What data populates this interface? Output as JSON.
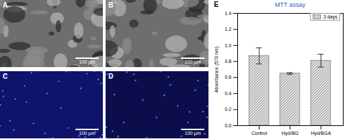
{
  "panels": [
    {
      "label": "A",
      "scale_bar": "100 µm"
    },
    {
      "label": "B",
      "scale_bar": "100 µm"
    },
    {
      "label": "C",
      "scale_bar": "100 µm"
    },
    {
      "label": "D",
      "scale_bar": "100 µm"
    }
  ],
  "chart_data": {
    "type": "bar",
    "panel_label": "E",
    "title": "MTT assay",
    "y_label": "Absorbance (570 nm)",
    "categories": [
      "Control",
      "Hyd/BG",
      "Hyd/BGA"
    ],
    "series": [
      {
        "name": "3 days",
        "color": "#7f7f7f",
        "values": [
          0.87,
          0.65,
          0.81
        ],
        "errors": [
          0.1,
          0.01,
          0.08
        ]
      }
    ],
    "ylim": [
      0,
      1.4
    ],
    "yticks": [
      {
        "value": 0,
        "label": "0.0"
      },
      {
        "value": 0.2,
        "label": "0.2"
      },
      {
        "value": 0.4,
        "label": "0.4"
      },
      {
        "value": 0.6,
        "label": "0.6"
      },
      {
        "value": 0.8,
        "label": "0.8"
      },
      {
        "value": 1.0,
        "label": "1.0"
      },
      {
        "value": 1.2,
        "label": "1.2"
      },
      {
        "value": 1.4,
        "label": "1.4"
      }
    ],
    "legend": "upper right",
    "grid": false
  }
}
